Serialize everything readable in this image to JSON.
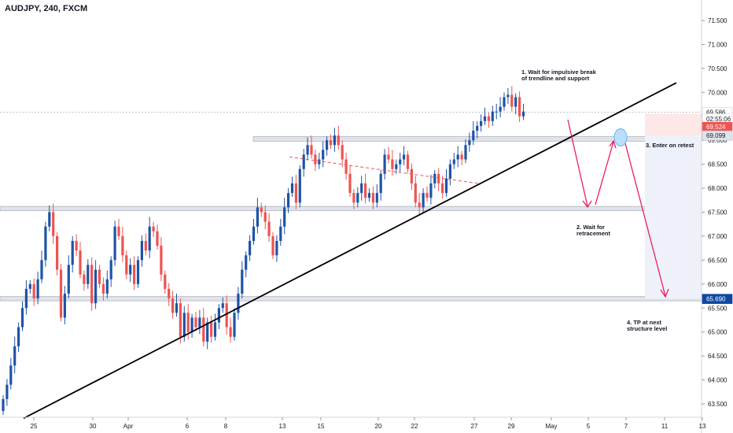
{
  "chart_data": {
    "type": "candlestick",
    "title": "AUDJPY, 240, FXCM",
    "y_axis": {
      "ticks": [
        "63.500",
        "64.000",
        "64.500",
        "65.000",
        "65.500",
        "66.000",
        "66.500",
        "67.000",
        "67.500",
        "68.000",
        "68.500",
        "69.000",
        "69.500",
        "70.000",
        "70.500",
        "71.000",
        "71.500"
      ],
      "ylim": [
        63.2,
        71.75
      ],
      "position": "right"
    },
    "x_axis": {
      "ticks": [
        "25",
        "30",
        "Apr",
        "6",
        "8",
        "13",
        "15",
        "20",
        "22",
        "27",
        "29",
        "May",
        "5",
        "7",
        "11",
        "13"
      ]
    },
    "price_labels": [
      {
        "text": "69.586",
        "kind": "plain"
      },
      {
        "text": "02:55:06",
        "kind": "plain"
      },
      {
        "text": "69.524",
        "kind": "red"
      },
      {
        "text": "69.099",
        "kind": "gray"
      },
      {
        "text": "65.690",
        "kind": "blue"
      }
    ],
    "zones": [
      {
        "name": "resistance-zone",
        "from": 68.98,
        "to": 69.08
      },
      {
        "name": "retracement-zone",
        "from": 67.53,
        "to": 67.62
      },
      {
        "name": "target-zone",
        "from": 65.65,
        "to": 65.74
      }
    ],
    "annotations": [
      {
        "id": "step1",
        "text": "1. Wait for impulsive break\nof trendline and support"
      },
      {
        "id": "step2",
        "text": "2. Wait for\nretracement"
      },
      {
        "id": "step3",
        "text": "3. Enter on retest"
      },
      {
        "id": "step4",
        "text": "4. TP at next\nstructure level"
      }
    ],
    "colors": {
      "up": "#1e53a6",
      "down": "#ef5350",
      "projection": "#e91e63",
      "trendline": "#000000",
      "label_blue": "#0d47a1"
    },
    "closes": [
      63.6,
      63.9,
      64.3,
      64.7,
      65.1,
      65.5,
      65.9,
      66.0,
      65.7,
      66.1,
      66.5,
      67.2,
      67.5,
      67.0,
      66.3,
      65.3,
      65.8,
      66.4,
      66.9,
      66.7,
      66.2,
      66.0,
      66.4,
      65.6,
      66.3,
      66.0,
      65.8,
      66.1,
      66.5,
      67.2,
      67.0,
      66.6,
      66.2,
      66.4,
      66.0,
      66.5,
      66.9,
      66.7,
      67.2,
      67.1,
      66.8,
      66.2,
      65.9,
      65.7,
      65.4,
      65.6,
      64.9,
      65.4,
      65.0,
      65.3,
      65.1,
      65.3,
      64.8,
      65.2,
      64.9,
      65.2,
      65.5,
      65.6,
      65.1,
      64.9,
      65.4,
      65.8,
      66.3,
      66.6,
      66.9,
      67.2,
      67.6,
      67.5,
      67.3,
      67.0,
      66.6,
      66.9,
      67.2,
      67.6,
      67.9,
      68.1,
      67.7,
      68.4,
      68.7,
      68.9,
      68.7,
      68.5,
      68.6,
      68.8,
      69.0,
      68.9,
      69.1,
      68.9,
      68.6,
      68.3,
      67.9,
      67.7,
      67.9,
      68.1,
      67.8,
      67.9,
      67.7,
      67.9,
      68.3,
      68.7,
      68.6,
      68.4,
      68.5,
      68.6,
      68.7,
      68.4,
      68.1,
      67.7,
      67.6,
      67.9,
      67.8,
      68.1,
      68.3,
      68.1,
      67.9,
      68.2,
      68.5,
      68.6,
      68.7,
      68.6,
      68.9,
      69.0,
      69.2,
      69.3,
      69.4,
      69.5,
      69.4,
      69.6,
      69.6,
      69.7,
      69.9,
      69.95,
      69.7,
      69.9,
      69.5,
      69.6
    ]
  }
}
